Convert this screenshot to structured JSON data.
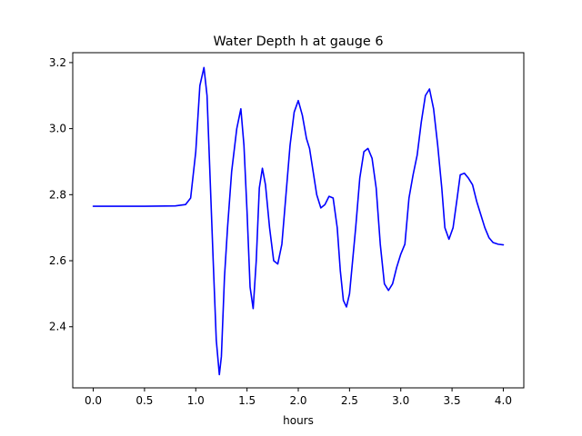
{
  "chart_data": {
    "type": "line",
    "title": "Water Depth h at gauge 6",
    "xlabel": "hours",
    "ylabel": "",
    "xlim": [
      -0.2,
      4.2
    ],
    "ylim": [
      2.215,
      3.23
    ],
    "xticks": [
      0.0,
      0.5,
      1.0,
      1.5,
      2.0,
      2.5,
      3.0,
      3.5,
      4.0
    ],
    "xtick_labels": [
      "0.0",
      "0.5",
      "1.0",
      "1.5",
      "2.0",
      "2.5",
      "3.0",
      "3.5",
      "4.0"
    ],
    "yticks": [
      2.4,
      2.6,
      2.8,
      3.0,
      3.2
    ],
    "ytick_labels": [
      "2.4",
      "2.6",
      "2.8",
      "3.0",
      "3.2"
    ],
    "grid": false,
    "legend": "none",
    "series": [
      {
        "color": "#0000ff",
        "x": [
          0.0,
          0.5,
          0.8,
          0.9,
          0.95,
          1.0,
          1.04,
          1.08,
          1.11,
          1.14,
          1.17,
          1.2,
          1.23,
          1.25,
          1.28,
          1.31,
          1.35,
          1.4,
          1.44,
          1.47,
          1.5,
          1.53,
          1.56,
          1.59,
          1.62,
          1.65,
          1.68,
          1.72,
          1.76,
          1.8,
          1.84,
          1.88,
          1.92,
          1.96,
          2.0,
          2.04,
          2.08,
          2.11,
          2.14,
          2.18,
          2.22,
          2.26,
          2.3,
          2.34,
          2.38,
          2.41,
          2.44,
          2.47,
          2.5,
          2.53,
          2.56,
          2.6,
          2.64,
          2.68,
          2.72,
          2.76,
          2.8,
          2.84,
          2.88,
          2.92,
          2.96,
          3.0,
          3.04,
          3.08,
          3.12,
          3.16,
          3.2,
          3.24,
          3.28,
          3.32,
          3.36,
          3.4,
          3.43,
          3.47,
          3.51,
          3.55,
          3.58,
          3.62,
          3.66,
          3.7,
          3.74,
          3.78,
          3.82,
          3.86,
          3.9,
          3.95,
          4.0
        ],
        "y": [
          2.765,
          2.765,
          2.766,
          2.77,
          2.79,
          2.93,
          3.13,
          3.185,
          3.1,
          2.85,
          2.6,
          2.36,
          2.255,
          2.31,
          2.55,
          2.7,
          2.87,
          3.0,
          3.06,
          2.95,
          2.75,
          2.52,
          2.455,
          2.6,
          2.82,
          2.88,
          2.83,
          2.7,
          2.6,
          2.59,
          2.65,
          2.8,
          2.95,
          3.05,
          3.085,
          3.04,
          2.97,
          2.94,
          2.88,
          2.8,
          2.76,
          2.77,
          2.795,
          2.79,
          2.7,
          2.57,
          2.48,
          2.46,
          2.5,
          2.6,
          2.7,
          2.85,
          2.93,
          2.94,
          2.91,
          2.82,
          2.65,
          2.53,
          2.51,
          2.53,
          2.58,
          2.62,
          2.65,
          2.79,
          2.86,
          2.92,
          3.02,
          3.1,
          3.12,
          3.06,
          2.95,
          2.82,
          2.7,
          2.665,
          2.7,
          2.79,
          2.86,
          2.865,
          2.85,
          2.83,
          2.78,
          2.74,
          2.7,
          2.67,
          2.655,
          2.65,
          2.648
        ]
      }
    ]
  }
}
